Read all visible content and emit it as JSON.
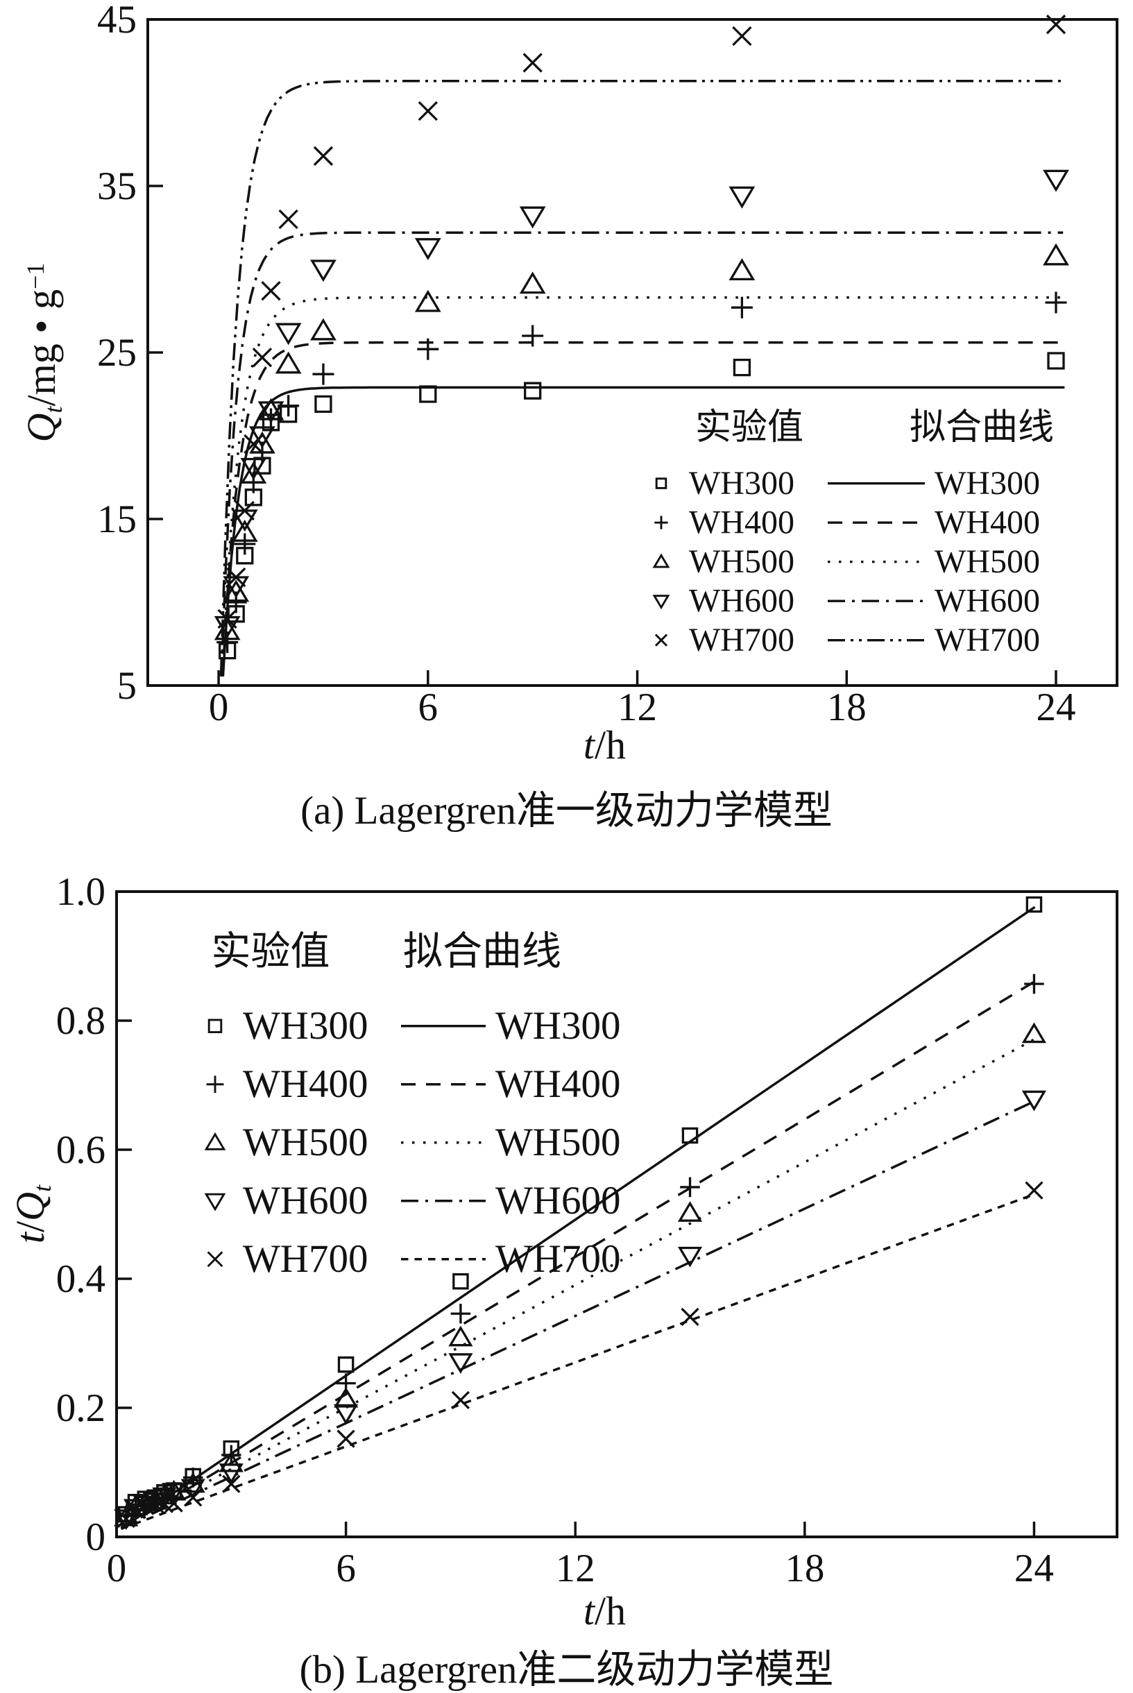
{
  "page": {
    "background": "#ffffff",
    "ink": "#111111"
  },
  "chart_data": [
    {
      "key": "a",
      "type": "scatter",
      "caption": "(a) Lagergren准一级动力学模型",
      "xlabel": {
        "italic": "t",
        "rest": "/h"
      },
      "ylabel": {
        "sym": "Q",
        "sub": "t",
        "unit": "/mg • g",
        "sup": "−1"
      },
      "xlim": [
        -2.03,
        25.75
      ],
      "ylim": [
        5,
        45
      ],
      "xticks": [
        {
          "v": 0,
          "l": "0"
        },
        {
          "v": 6,
          "l": "6"
        },
        {
          "v": 12,
          "l": "12"
        },
        {
          "v": 18,
          "l": "18"
        },
        {
          "v": 24,
          "l": "24"
        }
      ],
      "yticks": [
        {
          "v": 5,
          "l": "5"
        },
        {
          "v": 15,
          "l": "15"
        },
        {
          "v": 25,
          "l": "25"
        },
        {
          "v": 35,
          "l": "35"
        },
        {
          "v": 45,
          "l": "45"
        }
      ],
      "legend": {
        "exp_header": "实验值",
        "fit_header": "拟合曲线"
      },
      "series": [
        {
          "name": "WH300",
          "marker": "square",
          "line": "solid",
          "x": [
            0.25,
            0.5,
            0.75,
            1,
            1.25,
            1.5,
            2,
            3,
            6,
            9,
            15,
            24
          ],
          "y": [
            7.1,
            9.3,
            12.8,
            16.3,
            18.2,
            20.8,
            21.3,
            21.9,
            22.5,
            22.7,
            24.1,
            24.5
          ],
          "fit": {
            "type": "pfo",
            "qe": 22.9,
            "k": 2.2
          }
        },
        {
          "name": "WH400",
          "marker": "plus",
          "line": "dashed",
          "x": [
            0.25,
            0.5,
            0.75,
            1,
            1.25,
            1.5,
            2,
            3,
            6,
            9,
            15,
            24
          ],
          "y": [
            7.6,
            10.0,
            13.5,
            17.2,
            19.0,
            21.0,
            21.8,
            23.7,
            25.2,
            26.0,
            27.7,
            28.0
          ],
          "fit": {
            "type": "pfo",
            "qe": 25.6,
            "k": 2.1
          }
        },
        {
          "name": "WH500",
          "marker": "triangle-up",
          "line": "dotted",
          "x": [
            0.25,
            0.5,
            0.75,
            1,
            1.25,
            1.5,
            2,
            3,
            6,
            9,
            15,
            24
          ],
          "y": [
            8.3,
            10.6,
            14.2,
            17.7,
            19.5,
            21.5,
            24.3,
            26.3,
            28.0,
            29.1,
            29.9,
            30.8
          ],
          "fit": {
            "type": "pfo",
            "qe": 28.3,
            "k": 2.0
          }
        },
        {
          "name": "WH600",
          "marker": "triangle-down",
          "line": "dashdot",
          "x": [
            0.25,
            0.5,
            0.75,
            1,
            1.25,
            1.5,
            2,
            3,
            6,
            9,
            15,
            24
          ],
          "y": [
            8.6,
            11.0,
            15.0,
            18.1,
            20.0,
            21.5,
            26.2,
            30.0,
            31.3,
            33.2,
            34.4,
            35.4
          ],
          "fit": {
            "type": "pfo",
            "qe": 32.2,
            "k": 2.3
          }
        },
        {
          "name": "WH700",
          "marker": "x",
          "line": "dashdotdot",
          "x": [
            0.25,
            0.5,
            0.75,
            1,
            1.25,
            1.5,
            2,
            3,
            6,
            9,
            15,
            24
          ],
          "y": [
            9.0,
            11.5,
            15.5,
            19.5,
            24.7,
            28.7,
            33.0,
            36.8,
            39.5,
            42.4,
            44.0,
            44.7
          ],
          "fit": {
            "type": "pfo",
            "qe": 41.3,
            "k": 2.1
          }
        }
      ]
    },
    {
      "key": "b",
      "type": "scatter",
      "caption": "(b) Lagergren准二级动力学模型",
      "xlabel": {
        "italic": "t",
        "rest": "/h"
      },
      "ylabel": {
        "sym": "t",
        "unit": "/",
        "sym2": "Q",
        "sub": "t"
      },
      "xlim": [
        0,
        26.17
      ],
      "ylim": [
        0,
        1.0
      ],
      "xticks": [
        {
          "v": 0,
          "l": "0"
        },
        {
          "v": 6,
          "l": "6"
        },
        {
          "v": 12,
          "l": "12"
        },
        {
          "v": 18,
          "l": "18"
        },
        {
          "v": 24,
          "l": "24"
        }
      ],
      "yticks": [
        {
          "v": 0,
          "l": "0"
        },
        {
          "v": 0.2,
          "l": "0.2"
        },
        {
          "v": 0.4,
          "l": "0.4"
        },
        {
          "v": 0.6,
          "l": "0.6"
        },
        {
          "v": 0.8,
          "l": "0.8"
        },
        {
          "v": 1.0,
          "l": "1.0"
        }
      ],
      "legend": {
        "exp_header": "实验值",
        "fit_header": "拟合曲线"
      },
      "series": [
        {
          "name": "WH300",
          "marker": "square",
          "line": "solid",
          "x": [
            0.25,
            0.5,
            0.75,
            1,
            1.25,
            1.5,
            2,
            3,
            6,
            9,
            15,
            24
          ],
          "y": [
            0.035,
            0.054,
            0.059,
            0.061,
            0.069,
            0.072,
            0.094,
            0.137,
            0.267,
            0.396,
            0.622,
            0.98
          ],
          "fit": {
            "type": "linear",
            "a": 0.008,
            "b": 0.0403
          }
        },
        {
          "name": "WH400",
          "marker": "plus",
          "line": "dashed",
          "x": [
            0.25,
            0.5,
            0.75,
            1,
            1.25,
            1.5,
            2,
            3,
            6,
            9,
            15,
            24
          ],
          "y": [
            0.033,
            0.05,
            0.056,
            0.058,
            0.066,
            0.071,
            0.092,
            0.127,
            0.238,
            0.346,
            0.542,
            0.857
          ],
          "fit": {
            "type": "linear",
            "a": 0.008,
            "b": 0.0355
          }
        },
        {
          "name": "WH500",
          "marker": "triangle-up",
          "line": "dotted",
          "x": [
            0.25,
            0.5,
            0.75,
            1,
            1.25,
            1.5,
            2,
            3,
            6,
            9,
            15,
            24
          ],
          "y": [
            0.03,
            0.047,
            0.053,
            0.056,
            0.064,
            0.07,
            0.082,
            0.114,
            0.214,
            0.309,
            0.502,
            0.779
          ],
          "fit": {
            "type": "linear",
            "a": 0.01,
            "b": 0.0317
          }
        },
        {
          "name": "WH600",
          "marker": "triangle-down",
          "line": "dashdot",
          "x": [
            0.25,
            0.5,
            0.75,
            1,
            1.25,
            1.5,
            2,
            3,
            6,
            9,
            15,
            24
          ],
          "y": [
            0.029,
            0.045,
            0.05,
            0.055,
            0.063,
            0.07,
            0.076,
            0.1,
            0.192,
            0.271,
            0.436,
            0.678
          ],
          "fit": {
            "type": "linear",
            "a": 0.01,
            "b": 0.0277
          }
        },
        {
          "name": "WH700",
          "marker": "x",
          "line": "shortdash",
          "x": [
            0.25,
            0.5,
            0.75,
            1,
            1.25,
            1.5,
            2,
            3,
            6,
            9,
            15,
            24
          ],
          "y": [
            0.028,
            0.043,
            0.048,
            0.051,
            0.051,
            0.052,
            0.061,
            0.082,
            0.152,
            0.212,
            0.341,
            0.537
          ],
          "fit": {
            "type": "linear",
            "a": 0.01,
            "b": 0.0217
          }
        }
      ]
    }
  ]
}
